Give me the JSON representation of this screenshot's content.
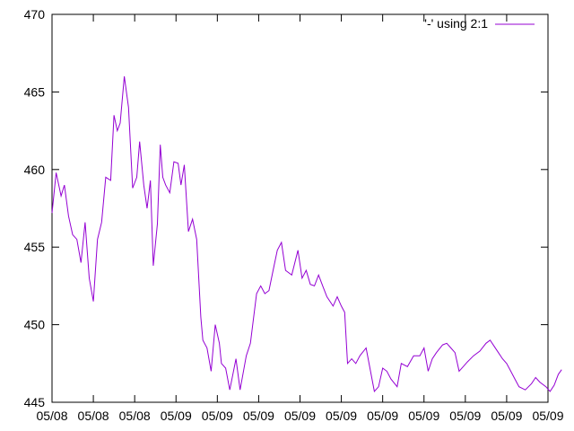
{
  "chart_data": {
    "type": "line",
    "title": "",
    "xlabel": "",
    "ylabel": "",
    "ylim": [
      445,
      470
    ],
    "yticks": [
      445,
      450,
      455,
      460,
      465,
      470
    ],
    "xticks": [
      "05/08",
      "05/08",
      "05/08",
      "05/09",
      "05/09",
      "05/09",
      "05/09",
      "05/09",
      "05/09",
      "05/09",
      "05/09",
      "05/09",
      "05/09"
    ],
    "grid": false,
    "legend": "top-right",
    "series": [
      {
        "name": "'-' using 2:1",
        "color": "#9400d3",
        "x": [
          0.0,
          0.1,
          0.22,
          0.3,
          0.4,
          0.5,
          0.6,
          0.7,
          0.8,
          0.9,
          1.0,
          1.1,
          1.2,
          1.3,
          1.42,
          1.5,
          1.58,
          1.65,
          1.75,
          1.85,
          1.95,
          2.05,
          2.12,
          2.22,
          2.3,
          2.38,
          2.45,
          2.55,
          2.62,
          2.68,
          2.75,
          2.85,
          2.95,
          3.05,
          3.12,
          3.2,
          3.3,
          3.4,
          3.5,
          3.6,
          3.65,
          3.75,
          3.85,
          3.95,
          4.05,
          4.1,
          4.2,
          4.3,
          4.45,
          4.55,
          4.7,
          4.8,
          4.95,
          5.05,
          5.15,
          5.25,
          5.35,
          5.45,
          5.55,
          5.65,
          5.8,
          5.95,
          6.05,
          6.15,
          6.25,
          6.35,
          6.45,
          6.55,
          6.65,
          6.8,
          6.9,
          7.0,
          7.08,
          7.15,
          7.25,
          7.35,
          7.45,
          7.6,
          7.8,
          7.9,
          8.0,
          8.1,
          8.2,
          8.35,
          8.45,
          8.6,
          8.75,
          8.9,
          9.0,
          9.1,
          9.2,
          9.3,
          9.45,
          9.55,
          9.65,
          9.75,
          9.85,
          9.95,
          10.05,
          10.2,
          10.35,
          10.5,
          10.6,
          10.7,
          10.8,
          10.9,
          11.0,
          11.1,
          11.2,
          11.3,
          11.45,
          11.6,
          11.7,
          11.8,
          11.95,
          12.05,
          12.15,
          12.25,
          12.33
        ],
        "y": [
          457.2,
          459.8,
          458.3,
          459.0,
          457.0,
          455.8,
          455.5,
          454.0,
          456.6,
          453.0,
          451.5,
          455.5,
          456.6,
          459.5,
          459.3,
          463.5,
          462.5,
          463.0,
          466.0,
          464.0,
          458.8,
          459.5,
          461.8,
          459.0,
          457.5,
          459.3,
          453.8,
          456.5,
          461.6,
          459.5,
          459.0,
          458.5,
          460.5,
          460.4,
          459.0,
          460.3,
          456.0,
          456.8,
          455.5,
          450.5,
          449.0,
          448.5,
          447.0,
          450.0,
          448.8,
          447.5,
          447.2,
          445.8,
          447.8,
          445.8,
          448.0,
          448.8,
          452.0,
          452.5,
          452.0,
          452.2,
          453.5,
          454.8,
          455.3,
          453.5,
          453.2,
          454.8,
          453.0,
          453.5,
          452.6,
          452.5,
          453.2,
          452.5,
          451.8,
          451.2,
          451.8,
          451.2,
          450.8,
          447.5,
          447.8,
          447.5,
          448.0,
          448.5,
          445.7,
          446.0,
          447.2,
          447.0,
          446.5,
          446.0,
          447.5,
          447.3,
          448.0,
          448.0,
          448.5,
          447.0,
          447.8,
          448.2,
          448.7,
          448.8,
          448.5,
          448.2,
          447.0,
          447.3,
          447.6,
          448.0,
          448.3,
          448.8,
          449.0,
          448.6,
          448.2,
          447.8,
          447.5,
          447.0,
          446.5,
          446.0,
          445.8,
          446.2,
          446.6,
          446.3,
          446.0,
          445.7,
          446.1,
          446.8,
          447.1
        ]
      }
    ]
  }
}
